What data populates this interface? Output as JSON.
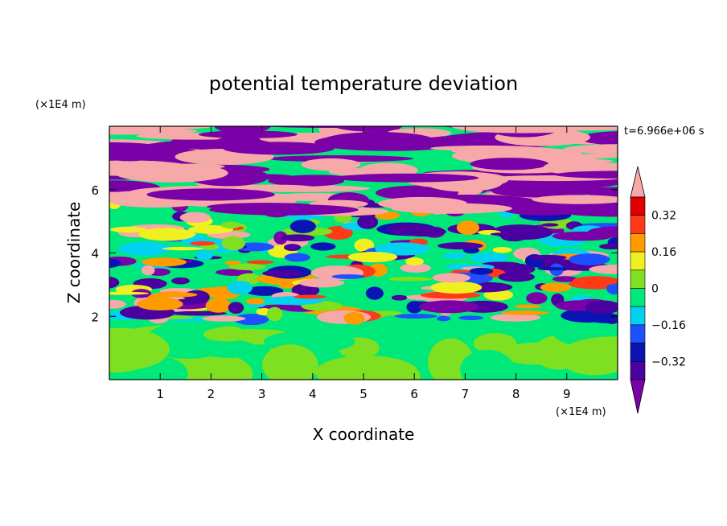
{
  "chart_data": {
    "type": "heatmap",
    "title": "potential temperature deviation",
    "xlabel": "X coordinate",
    "ylabel": "Z coordinate",
    "x_unit": "(×1E4 m)",
    "y_unit": "(×1E4 m)",
    "time_label": "t=6.966e+06 s",
    "xlim": [
      0,
      10
    ],
    "ylim": [
      0,
      8
    ],
    "x_ticks": [
      "1",
      "2",
      "3",
      "4",
      "5",
      "6",
      "7",
      "8",
      "9"
    ],
    "y_ticks": [
      "2",
      "4",
      "6"
    ],
    "colorbar": {
      "levels": [
        -0.4,
        -0.32,
        -0.24,
        -0.16,
        -0.08,
        0,
        0.08,
        0.16,
        0.24,
        0.32,
        0.4
      ],
      "labels": [
        "0.32",
        "0.16",
        "0",
        "−0.16",
        "−0.32"
      ],
      "colors": [
        "#7a00a8",
        "#4b00a0",
        "#0a14b4",
        "#1e50ff",
        "#00d2f0",
        "#00e87a",
        "#7ee020",
        "#f0f020",
        "#ff9a00",
        "#ff3a18",
        "#e00000",
        "#f7a8a8"
      ],
      "extend": "both"
    },
    "layers": [
      {
        "z_range": [
          0,
          1.9
        ],
        "dominant": "0 to 0.08",
        "description": "green near-zero"
      },
      {
        "z_range": [
          1.9,
          5.5
        ],
        "dominant": "mixed",
        "description": "turbulent mixed band"
      },
      {
        "z_range": [
          5.5,
          8
        ],
        "dominant": ">0.4 and <-0.4",
        "description": "alternating pink and purple"
      }
    ]
  }
}
